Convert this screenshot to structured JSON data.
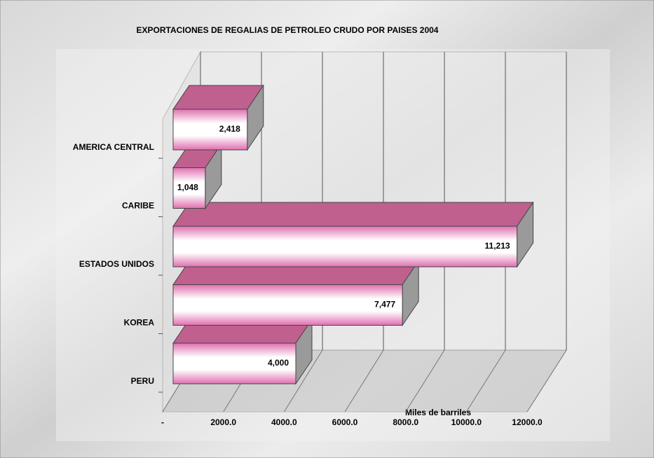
{
  "chart_data": {
    "type": "bar3d",
    "title": "EXPORTACIONES DE REGALIAS DE PETROLEO CRUDO  POR PAISES    2004",
    "x_label": "Miles de barriles",
    "categories": [
      "PERU",
      "KOREA",
      "ESTADOS UNIDOS",
      "CARIBE",
      "AMERICA CENTRAL"
    ],
    "values": [
      4000,
      7477,
      11213,
      1048,
      2418
    ],
    "value_labels": [
      "4,000",
      "7,477",
      "11,213",
      "1,048",
      "2,418"
    ],
    "color": "#c0608f",
    "xlim": [
      0,
      12000
    ],
    "xticks": [
      {
        "value": 0,
        "label": "-"
      },
      {
        "value": 2000,
        "label": "2000.0"
      },
      {
        "value": 4000,
        "label": "4000.0"
      },
      {
        "value": 6000,
        "label": "6000.0"
      },
      {
        "value": 8000,
        "label": "8000.0"
      },
      {
        "value": 10000,
        "label": "10000.0"
      },
      {
        "value": 12000,
        "label": "12000.0"
      }
    ],
    "grid": true
  }
}
